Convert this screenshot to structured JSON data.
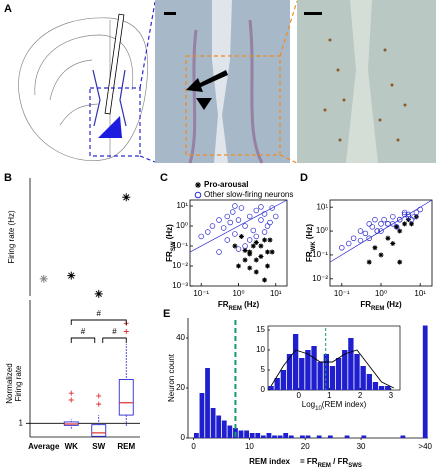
{
  "panel_labels": [
    "A",
    "B",
    "C",
    "D",
    "E"
  ],
  "chart_data": [
    {
      "type": "dot",
      "ylabel": "Firing rate (Hz)",
      "values": [
        0.8,
        0.95,
        0.1,
        4.6
      ],
      "colors": [
        "#888888",
        "#000000",
        "#000000",
        "#000000"
      ],
      "ylim": [
        0,
        5.5
      ]
    },
    {
      "type": "box",
      "ylabel": [
        "Normalized",
        "Firing rate"
      ],
      "categories": [
        "Average",
        "WK",
        "SW",
        "REM"
      ],
      "category_colors": [
        "#888888",
        "#000000",
        "#000000",
        "#000000"
      ],
      "boxes": [
        null,
        {
          "low": 0.6,
          "q1": 0.85,
          "median": 0.95,
          "q3": 1.1,
          "high": 1.3,
          "outliers": [
            2.7,
            3.2
          ]
        },
        {
          "low": 0,
          "q1": 0.05,
          "median": 0.3,
          "q3": 0.9,
          "high": 1.6,
          "outliers": [
            2.4,
            3.0
          ]
        },
        {
          "low": 0.8,
          "q1": 1.6,
          "median": 2.5,
          "q3": 4.2,
          "high": 6.8,
          "outliers": [
            7.7,
            8.3
          ]
        }
      ],
      "color": "#2a2ad0",
      "outlier_color": "#e03030",
      "ylim": [
        0,
        10
      ],
      "yticks": [
        1
      ],
      "grid": true,
      "annotations": [
        {
          "label": "#",
          "between": [
            "WK",
            "REM"
          ]
        },
        {
          "label": "#",
          "between": [
            "WK",
            "SW"
          ]
        },
        {
          "label": "#",
          "between": [
            "SW",
            "REM"
          ]
        }
      ]
    },
    {
      "type": "scatter",
      "log": true,
      "xlabel": [
        "FR",
        "REM",
        " (Hz)"
      ],
      "ylabel": [
        "FR",
        "SW",
        " (Hz)"
      ],
      "xlim": [
        0.05,
        20
      ],
      "ylim": [
        0.001,
        20
      ],
      "xticks": [
        {
          "value": 0.1,
          "label": "10⁻¹"
        },
        {
          "value": 1,
          "label": "10⁰"
        },
        {
          "value": 10,
          "label": "10¹"
        }
      ],
      "yticks": [
        {
          "value": 0.001,
          "label": "10⁻³"
        },
        {
          "value": 0.01,
          "label": "10⁻²"
        },
        {
          "value": 0.1,
          "label": "10⁻¹"
        },
        {
          "value": 1,
          "label": "10⁰"
        },
        {
          "value": 10,
          "label": "10¹"
        }
      ],
      "legend": "top-left",
      "series": [
        {
          "name": "Pro-arousal",
          "marker": "star",
          "color": "#000000",
          "x": [
            1,
            1.5,
            2,
            2.5,
            3,
            4,
            5,
            6,
            8,
            1.2,
            2,
            3,
            4,
            6,
            0.8,
            5,
            3,
            2,
            7,
            1.5
          ],
          "values": [
            0.01,
            0.02,
            0.05,
            0.1,
            0.005,
            0.03,
            0.2,
            0.01,
            0.05,
            0.3,
            0.008,
            0.02,
            0.1,
            0.05,
            0.1,
            0.002,
            0.15,
            0.04,
            0.2,
            0.06
          ]
        },
        {
          "name": "Other slow-firing neurons",
          "marker": "circle",
          "color": "#2a2ad0",
          "x": [
            0.1,
            0.15,
            0.2,
            0.3,
            0.4,
            0.5,
            0.6,
            0.7,
            0.8,
            1,
            1.2,
            1.5,
            2,
            2.5,
            3,
            4,
            5,
            6,
            8,
            10,
            0.5,
            0.8,
            1.5,
            3,
            5,
            0.3,
            2,
            7,
            1,
            4
          ],
          "values": [
            0.3,
            0.5,
            1,
            2,
            0.8,
            3,
            1.5,
            5,
            0.4,
            2,
            8,
            1,
            3,
            0.6,
            6,
            2,
            4,
            1,
            8,
            3,
            0.2,
            10,
            0.1,
            0.3,
            0.5,
            0.05,
            0.2,
            1.5,
            0.07,
            9
          ]
        }
      ]
    },
    {
      "type": "scatter",
      "log": true,
      "xlabel": [
        "FR",
        "REM",
        " (Hz)"
      ],
      "ylabel": [
        "FR",
        "WK",
        " (Hz)"
      ],
      "xlim": [
        0.05,
        20
      ],
      "ylim": [
        0.005,
        20
      ],
      "xticks": [
        {
          "value": 0.1,
          "label": "10⁻¹"
        },
        {
          "value": 1,
          "label": "10⁰"
        },
        {
          "value": 10,
          "label": "10¹"
        }
      ],
      "yticks": [
        {
          "value": 0.01,
          "label": "10⁻²"
        },
        {
          "value": 0.1,
          "label": "10⁻¹"
        },
        {
          "value": 1,
          "label": "10⁰"
        },
        {
          "value": 10,
          "label": "10¹"
        }
      ],
      "series": [
        {
          "marker": "star",
          "color": "#000000",
          "x": [
            1,
            2,
            3,
            4,
            5,
            6,
            0.5,
            1.5,
            2.5,
            8,
            3,
            0.7
          ],
          "values": [
            0.1,
            0.3,
            1,
            2,
            3,
            2,
            0.05,
            0.5,
            1.5,
            4,
            0.05,
            0.2
          ]
        },
        {
          "marker": "circle",
          "color": "#2a2ad0",
          "x": [
            0.1,
            0.15,
            0.2,
            0.3,
            0.4,
            0.5,
            0.6,
            0.7,
            0.8,
            1,
            1.2,
            1.5,
            2,
            2.5,
            3,
            4,
            5,
            6,
            8,
            10,
            0.5,
            0.8,
            1.5,
            3,
            5,
            0.3,
            2,
            7,
            1,
            4
          ],
          "values": [
            0.2,
            0.3,
            0.5,
            1,
            0.8,
            2,
            1.5,
            3,
            1,
            2,
            3,
            2,
            4,
            1.5,
            3,
            5,
            4,
            3,
            6,
            8,
            0.5,
            1,
            2,
            3,
            5,
            0.4,
            2,
            4,
            1,
            6
          ]
        }
      ]
    },
    {
      "type": "histogram",
      "ylabel": "Neuron count",
      "xlabel": "REM index",
      "xlabel_formula": [
        "= FR",
        "REM",
        " / FR",
        "SWS"
      ],
      "bins": [
        0,
        1,
        2,
        3,
        4,
        5,
        6,
        7,
        8,
        9,
        10,
        11,
        12,
        13,
        14,
        15,
        16,
        17,
        18,
        19,
        20,
        21,
        22,
        23,
        24,
        25,
        26,
        27,
        28,
        29,
        30,
        31,
        32,
        33,
        34,
        35,
        36,
        37,
        38,
        39,
        40
      ],
      "counts": [
        2,
        18,
        28,
        12,
        9,
        7,
        5,
        4,
        3,
        3,
        2,
        2,
        1,
        2,
        1,
        1,
        2,
        1,
        0,
        1,
        1,
        0,
        1,
        0,
        1,
        0,
        0,
        1,
        0,
        0,
        1,
        0,
        0,
        0,
        0,
        0,
        0,
        1,
        0,
        0
      ],
      "overflow": {
        "label": ">40",
        "value": 45
      },
      "color": "#1f1fd0",
      "xlim": [
        -1,
        42
      ],
      "ylim": [
        0,
        48
      ],
      "xticks": [
        0,
        10,
        20,
        30
      ],
      "yticks": [
        0,
        20,
        40
      ],
      "reference_line": 7.5,
      "reference_color": "#1a9a6a"
    },
    {
      "type": "histogram",
      "inset": true,
      "xlabel": [
        "Log",
        "10",
        "(REM index)"
      ],
      "bins": [
        -1,
        -0.8,
        -0.6,
        -0.4,
        -0.2,
        0,
        0.2,
        0.4,
        0.6,
        0.8,
        1,
        1.2,
        1.4,
        1.6,
        1.8,
        2,
        2.2,
        2.4,
        2.6,
        2.8,
        3
      ],
      "counts": [
        1,
        3,
        5,
        9,
        14,
        8,
        10,
        11,
        7,
        9,
        6,
        8,
        10,
        13,
        9,
        6,
        4,
        2,
        1,
        1
      ],
      "fit": {
        "x": [
          -0.9,
          -0.5,
          -0.1,
          0.3,
          0.7,
          1.1,
          1.5,
          1.9,
          2.3,
          2.7,
          3.1
        ],
        "values": [
          1,
          6,
          10,
          9,
          7,
          7,
          9,
          10,
          6,
          2,
          0.5
        ]
      },
      "color": "#1f1fd0",
      "xlim": [
        -1,
        3.3
      ],
      "ylim": [
        0,
        16
      ],
      "xticks": [
        0,
        1,
        2,
        3
      ],
      "yticks": [
        0,
        5,
        10,
        15
      ],
      "reference_line": 0.88,
      "reference_color": "#1a9a6a"
    }
  ]
}
